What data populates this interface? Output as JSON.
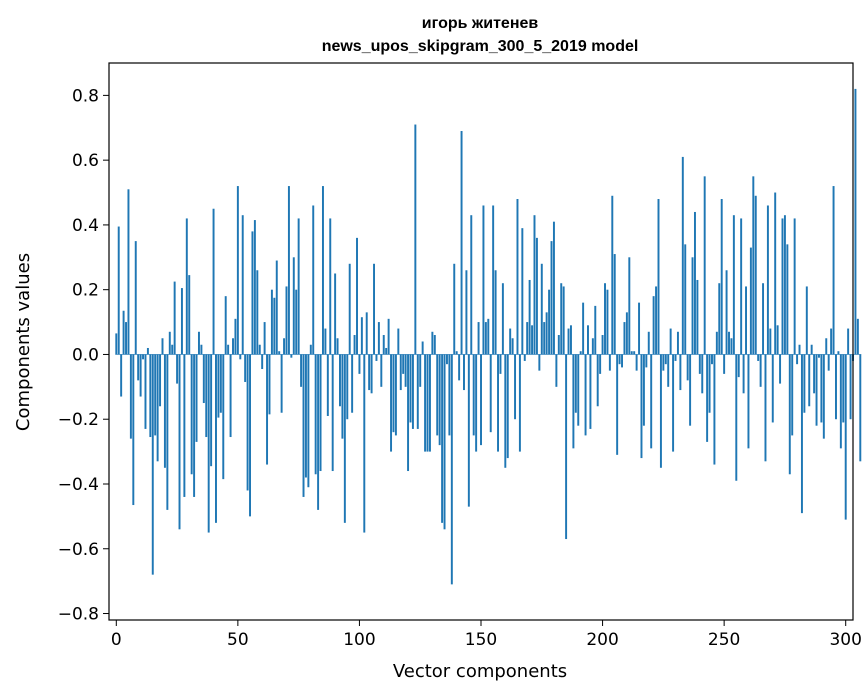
{
  "chart_data": {
    "type": "bar",
    "title_line1": "игорь житенев",
    "title_line2": "news_upos_skipgram_300_5_2019 model",
    "xlabel": "Vector components",
    "ylabel": "Components values",
    "xlim": [
      -3,
      303
    ],
    "ylim": [
      -0.82,
      0.9
    ],
    "xticks": [
      0,
      50,
      100,
      150,
      200,
      250,
      300
    ],
    "yticks": [
      -0.8,
      -0.6,
      -0.4,
      -0.2,
      0.0,
      0.2,
      0.4,
      0.6,
      0.8
    ],
    "xtick_labels": [
      "0",
      "50",
      "100",
      "150",
      "200",
      "250",
      "300"
    ],
    "ytick_labels": [
      "−0.8",
      "−0.6",
      "−0.4",
      "−0.2",
      "0.0",
      "0.2",
      "0.4",
      "0.6",
      "0.8"
    ],
    "bar_color": "#1f77b4",
    "grid": false,
    "values": [
      0.065,
      0.395,
      -0.13,
      0.135,
      0.1,
      0.51,
      -0.26,
      -0.465,
      0.35,
      -0.08,
      -0.13,
      -0.015,
      -0.23,
      0.02,
      -0.255,
      -0.68,
      -0.25,
      -0.33,
      -0.16,
      0.05,
      -0.35,
      -0.48,
      0.07,
      0.03,
      0.225,
      -0.09,
      -0.54,
      0.205,
      -0.44,
      0.42,
      0.245,
      -0.37,
      -0.44,
      -0.27,
      0.07,
      0.03,
      -0.15,
      -0.255,
      -0.55,
      -0.345,
      0.45,
      -0.52,
      -0.195,
      -0.18,
      -0.385,
      0.18,
      0.03,
      -0.255,
      0.05,
      0.11,
      0.52,
      -0.015,
      0.43,
      -0.085,
      -0.42,
      -0.5,
      0.38,
      0.415,
      0.26,
      0.03,
      -0.045,
      0.1,
      -0.34,
      -0.185,
      0.2,
      0.175,
      0.29,
      0.01,
      -0.18,
      0.05,
      0.21,
      0.52,
      -0.01,
      0.3,
      0.2,
      0.42,
      -0.1,
      -0.44,
      -0.38,
      -0.41,
      0.03,
      0.46,
      -0.37,
      -0.48,
      -0.36,
      0.52,
      0.08,
      -0.19,
      0.42,
      -0.36,
      0.25,
      0.05,
      -0.16,
      -0.26,
      -0.52,
      -0.2,
      0.28,
      -0.18,
      0.06,
      0.36,
      -0.06,
      0.115,
      -0.55,
      0.13,
      -0.11,
      -0.12,
      0.28,
      -0.02,
      0.1,
      -0.1,
      0.06,
      0.02,
      0.11,
      -0.3,
      -0.24,
      -0.25,
      0.08,
      -0.11,
      -0.06,
      -0.1,
      -0.36,
      -0.21,
      -0.23,
      0.71,
      -0.23,
      -0.1,
      0.04,
      -0.3,
      -0.3,
      -0.3,
      0.07,
      0.06,
      -0.25,
      -0.28,
      -0.52,
      -0.54,
      -0.03,
      -0.25,
      -0.71,
      0.28,
      0.01,
      -0.08,
      0.69,
      -0.11,
      0.26,
      -0.47,
      0.43,
      -0.25,
      -0.3,
      0.1,
      -0.28,
      0.46,
      0.1,
      0.11,
      -0.24,
      0.46,
      0.26,
      -0.3,
      -0.06,
      0.22,
      -0.35,
      -0.32,
      0.08,
      0.05,
      -0.2,
      0.48,
      -0.3,
      0.39,
      -0.02,
      0.1,
      0.23,
      0.09,
      0.43,
      0.36,
      -0.05,
      0.28,
      0.1,
      0.13,
      0.2,
      0.35,
      0.41,
      -0.1,
      0.06,
      0.22,
      0.21,
      -0.57,
      0.08,
      0.09,
      -0.29,
      -0.18,
      -0.22,
      0.01,
      0.16,
      -0.25,
      0.09,
      -0.23,
      0.05,
      0.15,
      -0.16,
      -0.06,
      0.06,
      0.22,
      0.2,
      -0.05,
      0.49,
      0.31,
      -0.31,
      -0.03,
      -0.04,
      0.1,
      0.13,
      0.3,
      0.01,
      0.01,
      -0.05,
      0.16,
      -0.32,
      -0.22,
      -0.04,
      0.07,
      -0.29,
      0.18,
      0.21,
      0.48,
      -0.35,
      -0.05,
      -0.03,
      -0.1,
      0.08,
      -0.3,
      -0.02,
      0.07,
      -0.11,
      0.61,
      0.34,
      -0.08,
      -0.22,
      0.3,
      0.44,
      0.23,
      -0.06,
      -0.12,
      0.55,
      -0.27,
      -0.18,
      -0.03,
      -0.34,
      0.07,
      0.22,
      0.48,
      -0.06,
      0.26,
      0.07,
      0.05,
      0.43,
      -0.39,
      -0.07,
      0.42,
      -0.12,
      0.21,
      -0.29,
      0.33,
      0.55,
      0.49,
      -0.02,
      -0.1,
      0.22,
      -0.33,
      0.46,
      0.08,
      -0.21,
      0.5,
      0.09,
      -0.09,
      0.42,
      0.43,
      0.34,
      -0.37,
      -0.25,
      0.42,
      -0.03,
      0.03,
      -0.49,
      -0.18,
      0.21,
      -0.16,
      0.03,
      -0.12,
      -0.22,
      -0.01,
      -0.21,
      -0.26,
      0.05,
      -0.05,
      0.08,
      0.52,
      -0.2,
      0.01,
      -0.29,
      -0.21,
      -0.51,
      0.08,
      -0.2,
      -0.02,
      0.82,
      0.11,
      -0.33
    ]
  }
}
